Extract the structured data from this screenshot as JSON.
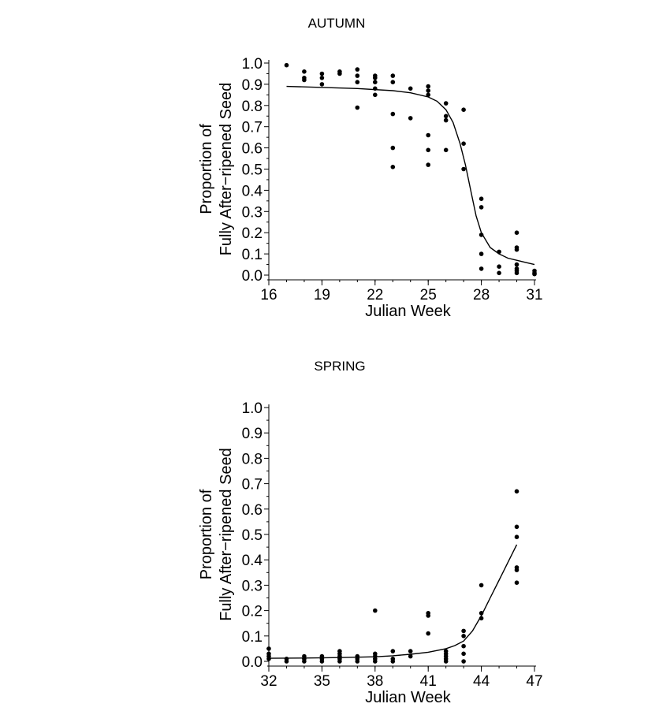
{
  "chart_data": [
    {
      "type": "scatter",
      "title": "AUTUMN",
      "xlabel": "Julian Week",
      "ylabel_line1": "Proportion of",
      "ylabel_line2": "Fully After−ripened Seed",
      "xlim": [
        16,
        31
      ],
      "ylim": [
        0.0,
        1.0
      ],
      "xticks": [
        "16",
        "19",
        "22",
        "25",
        "28",
        "31"
      ],
      "yticks": [
        "0.0",
        "0.1",
        "0.2",
        "0.3",
        "0.4",
        "0.5",
        "0.6",
        "0.7",
        "0.8",
        "0.9",
        "1.0"
      ],
      "points": [
        [
          17,
          0.99
        ],
        [
          18,
          0.96
        ],
        [
          18,
          0.93
        ],
        [
          18,
          0.92
        ],
        [
          19,
          0.95
        ],
        [
          19,
          0.93
        ],
        [
          19,
          0.9
        ],
        [
          20,
          0.96
        ],
        [
          20,
          0.95
        ],
        [
          21,
          0.97
        ],
        [
          21,
          0.94
        ],
        [
          21,
          0.91
        ],
        [
          21,
          0.79
        ],
        [
          22,
          0.94
        ],
        [
          22,
          0.93
        ],
        [
          22,
          0.91
        ],
        [
          22,
          0.88
        ],
        [
          22,
          0.85
        ],
        [
          23,
          0.94
        ],
        [
          23,
          0.91
        ],
        [
          23,
          0.76
        ],
        [
          23,
          0.6
        ],
        [
          23,
          0.51
        ],
        [
          24,
          0.88
        ],
        [
          24,
          0.74
        ],
        [
          25,
          0.89
        ],
        [
          25,
          0.87
        ],
        [
          25,
          0.85
        ],
        [
          25,
          0.66
        ],
        [
          25,
          0.59
        ],
        [
          25,
          0.52
        ],
        [
          26,
          0.81
        ],
        [
          26,
          0.75
        ],
        [
          26,
          0.73
        ],
        [
          26,
          0.59
        ],
        [
          27,
          0.78
        ],
        [
          27,
          0.62
        ],
        [
          27,
          0.5
        ],
        [
          28,
          0.36
        ],
        [
          28,
          0.32
        ],
        [
          28,
          0.19
        ],
        [
          28,
          0.1
        ],
        [
          28,
          0.03
        ],
        [
          29,
          0.11
        ],
        [
          29,
          0.04
        ],
        [
          29,
          0.01
        ],
        [
          30,
          0.2
        ],
        [
          30,
          0.13
        ],
        [
          30,
          0.12
        ],
        [
          30,
          0.05
        ],
        [
          30,
          0.03
        ],
        [
          30,
          0.02
        ],
        [
          30,
          0.01
        ],
        [
          31,
          0.02
        ],
        [
          31,
          0.01
        ],
        [
          31,
          0.005
        ]
      ],
      "curve": [
        [
          17,
          0.89
        ],
        [
          19,
          0.885
        ],
        [
          21,
          0.88
        ],
        [
          23,
          0.87
        ],
        [
          24,
          0.86
        ],
        [
          25,
          0.84
        ],
        [
          25.5,
          0.82
        ],
        [
          26,
          0.78
        ],
        [
          26.4,
          0.72
        ],
        [
          26.8,
          0.62
        ],
        [
          27.1,
          0.52
        ],
        [
          27.4,
          0.4
        ],
        [
          27.7,
          0.28
        ],
        [
          28,
          0.2
        ],
        [
          28.5,
          0.13
        ],
        [
          29,
          0.1
        ],
        [
          29.5,
          0.08
        ],
        [
          30,
          0.07
        ],
        [
          30.5,
          0.06
        ],
        [
          31,
          0.05
        ]
      ]
    },
    {
      "type": "scatter",
      "title": "SPRING",
      "xlabel": "Julian Week",
      "ylabel_line1": "Proportion of",
      "ylabel_line2": "Fully After−ripened Seed",
      "xlim": [
        32,
        47
      ],
      "ylim": [
        0.0,
        1.0
      ],
      "xticks": [
        "32",
        "35",
        "38",
        "41",
        "44",
        "47"
      ],
      "yticks": [
        "0.0",
        "0.1",
        "0.2",
        "0.3",
        "0.4",
        "0.5",
        "0.6",
        "0.7",
        "0.8",
        "0.9",
        "1.0"
      ],
      "points": [
        [
          32,
          0.05
        ],
        [
          32,
          0.03
        ],
        [
          32,
          0.02
        ],
        [
          32,
          0.01
        ],
        [
          33,
          0.01
        ],
        [
          33,
          0.0
        ],
        [
          34,
          0.02
        ],
        [
          34,
          0.01
        ],
        [
          34,
          0.0
        ],
        [
          35,
          0.02
        ],
        [
          35,
          0.01
        ],
        [
          35,
          0.0
        ],
        [
          36,
          0.04
        ],
        [
          36,
          0.03
        ],
        [
          36,
          0.02
        ],
        [
          36,
          0.01
        ],
        [
          36,
          0.0
        ],
        [
          37,
          0.02
        ],
        [
          37,
          0.01
        ],
        [
          37,
          0.0
        ],
        [
          38,
          0.2
        ],
        [
          38,
          0.03
        ],
        [
          38,
          0.02
        ],
        [
          38,
          0.01
        ],
        [
          38,
          0.0
        ],
        [
          39,
          0.04
        ],
        [
          39,
          0.01
        ],
        [
          39,
          0.0
        ],
        [
          40,
          0.04
        ],
        [
          40,
          0.02
        ],
        [
          41,
          0.19
        ],
        [
          41,
          0.18
        ],
        [
          41,
          0.11
        ],
        [
          42,
          0.04
        ],
        [
          42,
          0.03
        ],
        [
          42,
          0.02
        ],
        [
          42,
          0.01
        ],
        [
          42,
          0.0
        ],
        [
          43,
          0.12
        ],
        [
          43,
          0.1
        ],
        [
          43,
          0.06
        ],
        [
          43,
          0.03
        ],
        [
          43,
          0.0
        ],
        [
          44,
          0.3
        ],
        [
          44,
          0.19
        ],
        [
          44,
          0.17
        ],
        [
          46,
          0.67
        ],
        [
          46,
          0.53
        ],
        [
          46,
          0.49
        ],
        [
          46,
          0.37
        ],
        [
          46,
          0.36
        ],
        [
          46,
          0.31
        ]
      ],
      "curve": [
        [
          32,
          0.012
        ],
        [
          34,
          0.013
        ],
        [
          36,
          0.015
        ],
        [
          38,
          0.018
        ],
        [
          39,
          0.022
        ],
        [
          40,
          0.028
        ],
        [
          41,
          0.036
        ],
        [
          42,
          0.05
        ],
        [
          42.5,
          0.062
        ],
        [
          43,
          0.08
        ],
        [
          43.5,
          0.12
        ],
        [
          44,
          0.18
        ],
        [
          44.5,
          0.25
        ],
        [
          45,
          0.32
        ],
        [
          45.5,
          0.39
        ],
        [
          46,
          0.46
        ]
      ]
    }
  ]
}
